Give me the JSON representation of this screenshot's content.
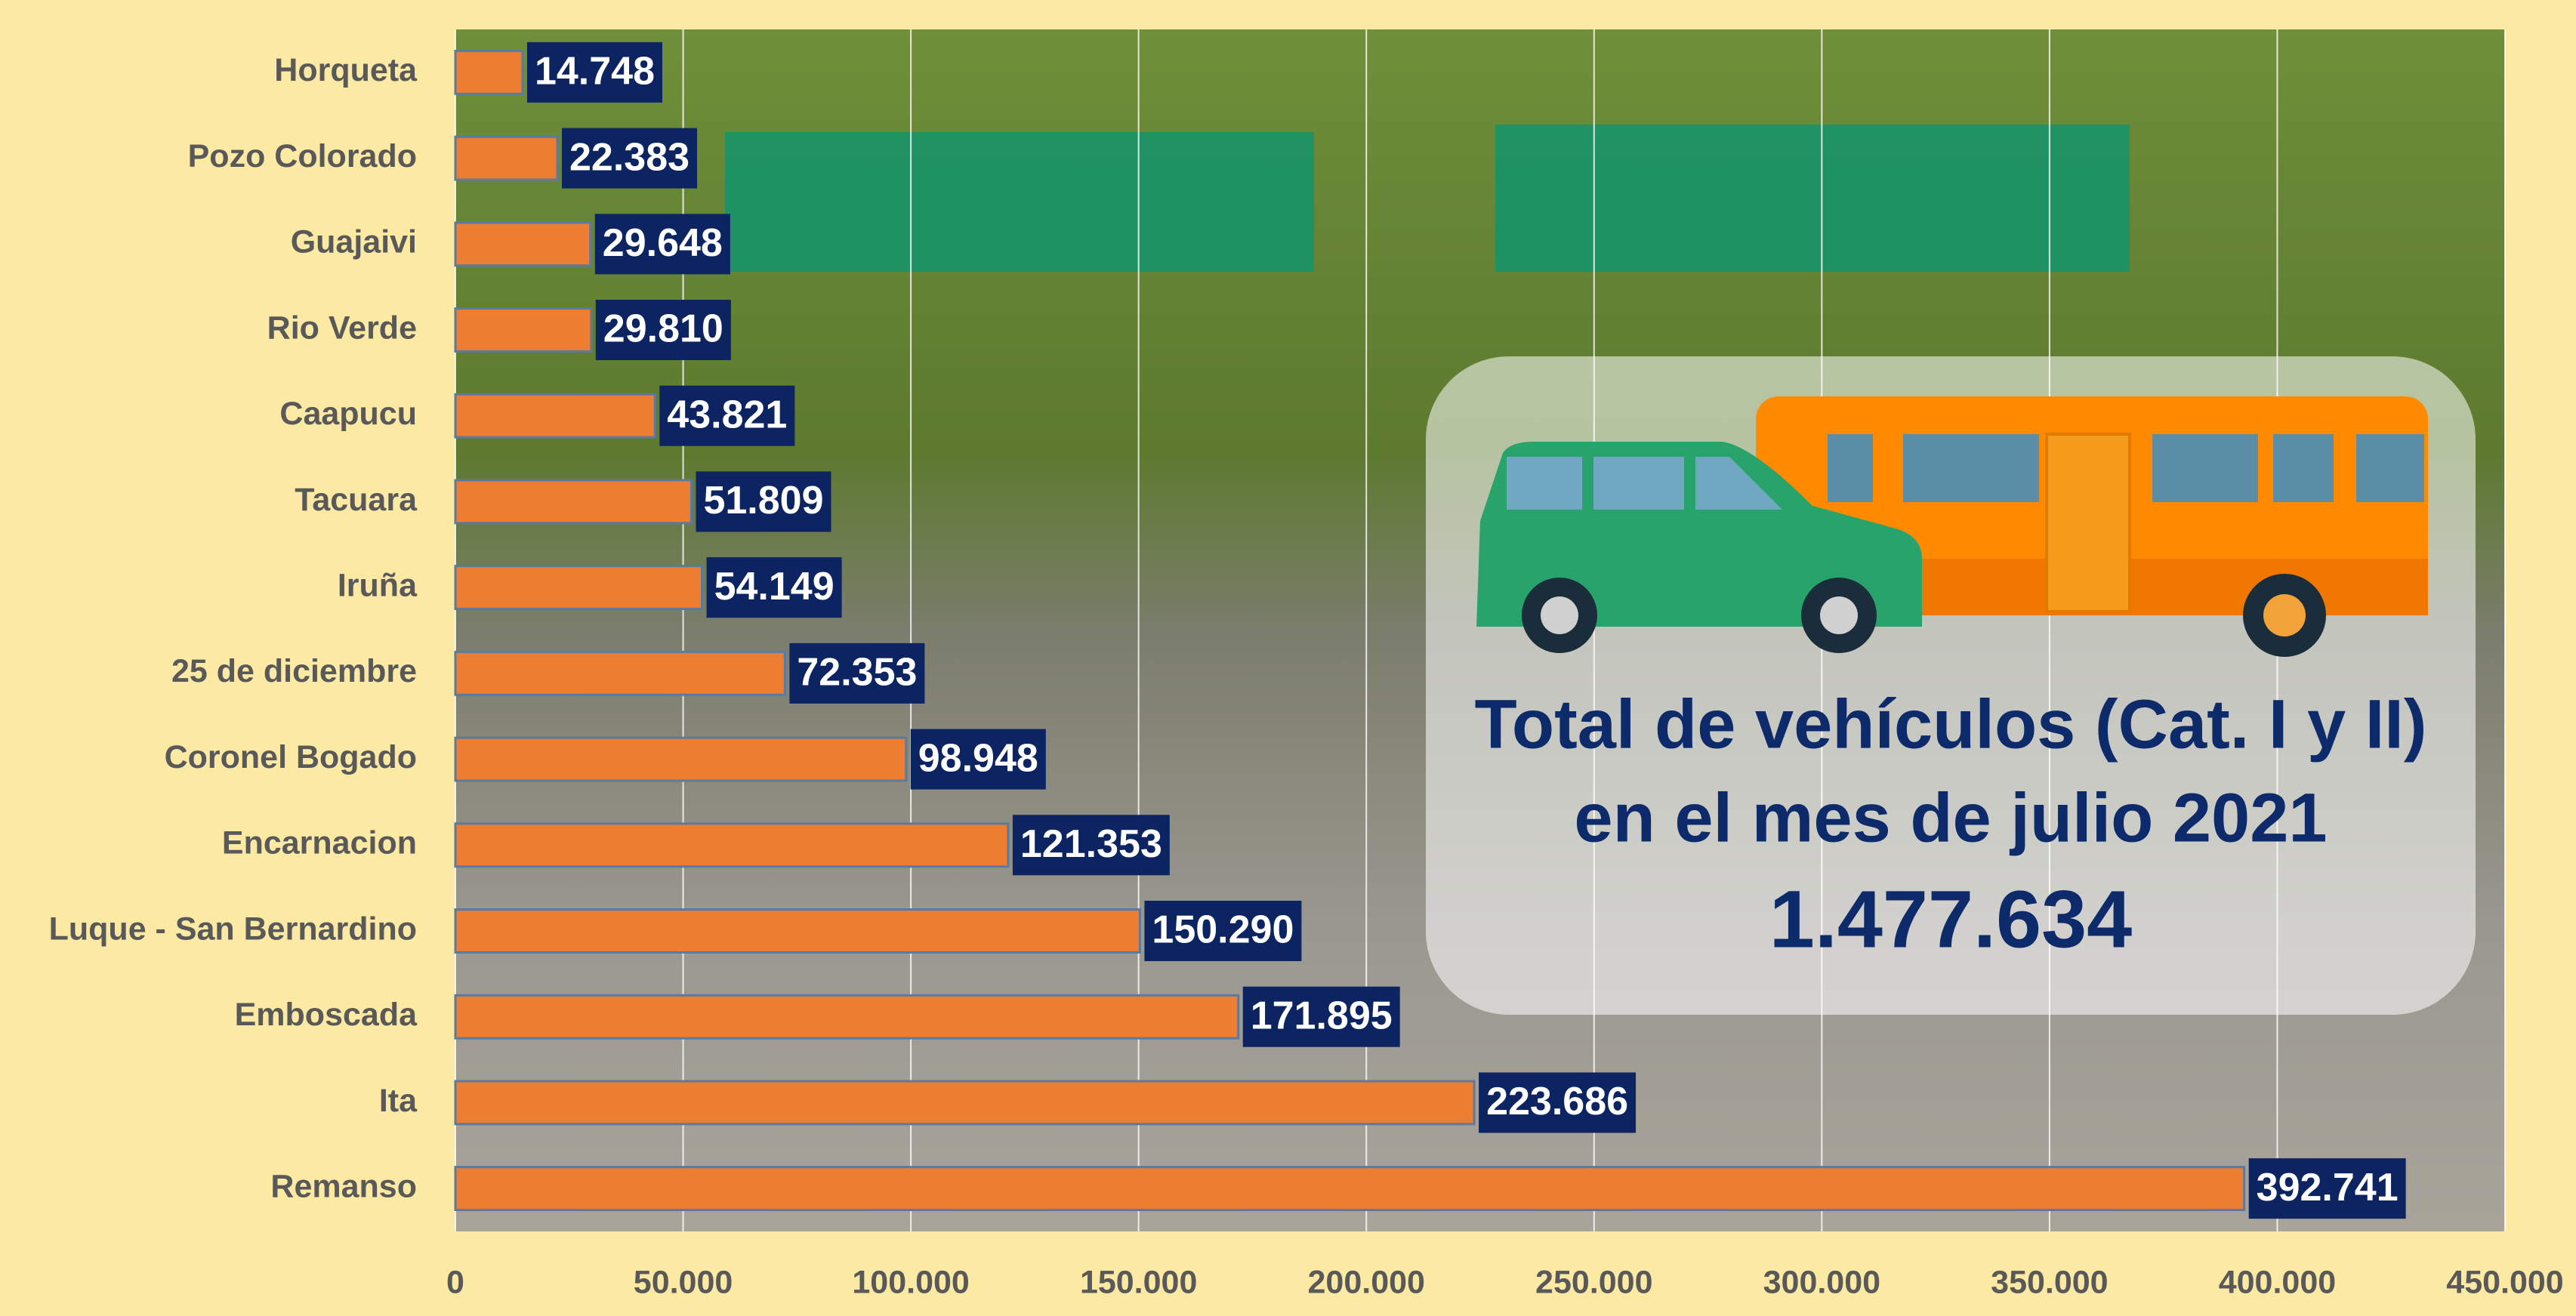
{
  "chart_data": {
    "type": "barh",
    "categories": [
      "Horqueta",
      "Pozo Colorado",
      "Guajaivi",
      "Rio Verde",
      "Caapucu",
      "Tacuara",
      "Iruña",
      "25 de diciembre",
      "Coronel Bogado",
      "Encarnacion",
      "Luque - San Bernardino",
      "Emboscada",
      "Ita",
      "Remanso"
    ],
    "values": [
      14748,
      22383,
      29648,
      29810,
      43821,
      51809,
      54149,
      72353,
      98948,
      121353,
      150290,
      171895,
      223686,
      392741
    ],
    "value_labels": [
      "14.748",
      "22.383",
      "29.648",
      "29.810",
      "43.821",
      "51.809",
      "54.149",
      "72.353",
      "98.948",
      "121.353",
      "150.290",
      "171.895",
      "223.686",
      "392.741"
    ],
    "color": "#ed7d31",
    "xlim": [
      0,
      450000
    ],
    "xticks": [
      0,
      {
        "value": 50000,
        "label": "50.000"
      },
      {
        "value": 100000,
        "label": "100.000"
      },
      {
        "value": 150000,
        "label": "150.000"
      },
      {
        "value": 200000,
        "label": "200.000"
      },
      {
        "value": 250000,
        "label": "250.000"
      },
      {
        "value": 300000,
        "label": "300.000"
      },
      {
        "value": 350000,
        "label": "350.000"
      },
      {
        "value": 400000,
        "label": "400.000"
      },
      {
        "value": 450000,
        "label": "450.000"
      }
    ],
    "grid": true,
    "annotation": {
      "lines": [
        "Total de vehículos (Cat. I y II)",
        "en el mes de julio 2021"
      ],
      "total": "1.477.634"
    }
  }
}
